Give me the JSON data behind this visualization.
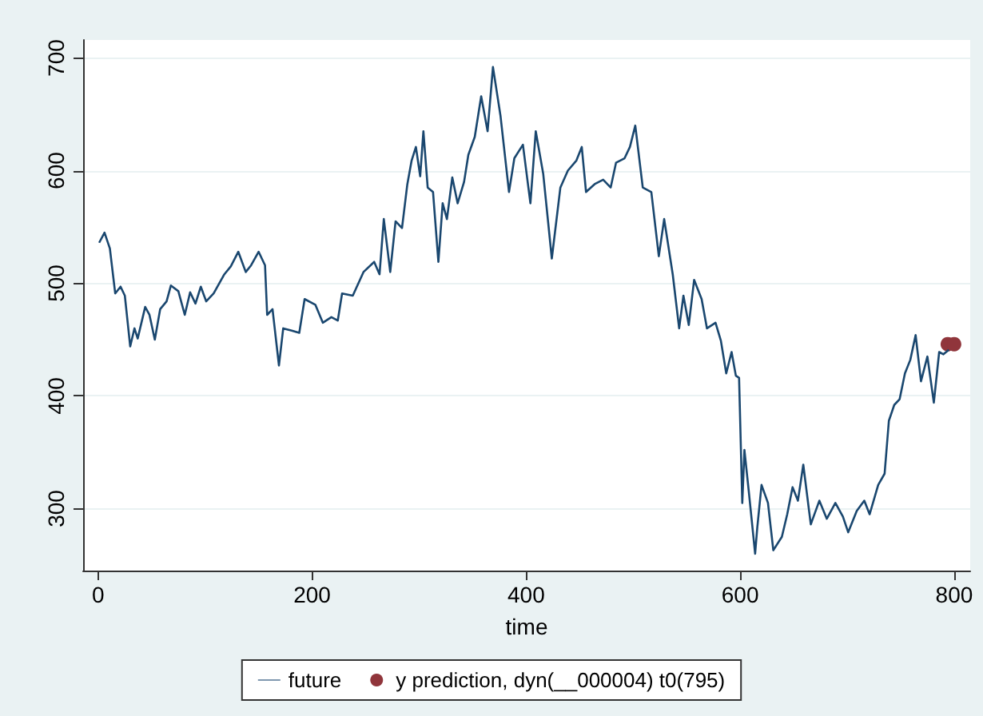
{
  "chart_data": {
    "type": "line",
    "xlabel": "time",
    "xlim": [
      -14,
      815
    ],
    "xticks": [
      0,
      200,
      400,
      600,
      800
    ],
    "ylim": [
      245,
      716
    ],
    "yticks": [
      300,
      400,
      500,
      600,
      700
    ],
    "grid": "y",
    "legend": "bottom",
    "marker": "none",
    "series": [
      {
        "name": "future",
        "color": "#1a476f",
        "x": [
          1,
          6,
          11,
          16,
          21,
          25,
          30,
          34,
          37,
          44,
          48,
          53,
          58,
          64,
          68,
          75,
          81,
          86,
          91,
          96,
          101,
          108,
          118,
          124,
          131,
          138,
          143,
          150,
          156,
          158,
          163,
          169,
          173,
          181,
          188,
          193,
          203,
          210,
          218,
          224,
          228,
          238,
          248,
          258,
          263,
          267,
          273,
          278,
          284,
          289,
          293,
          297,
          301,
          304,
          308,
          313,
          318,
          322,
          326,
          331,
          336,
          342,
          346,
          352,
          358,
          364,
          369,
          376,
          384,
          389,
          397,
          404,
          409,
          416,
          424,
          432,
          439,
          447,
          452,
          456,
          464,
          472,
          479,
          484,
          492,
          497,
          502,
          509,
          517,
          524,
          529,
          537,
          543,
          547,
          552,
          557,
          564,
          569,
          577,
          582,
          587,
          592,
          596,
          599,
          602,
          604,
          608,
          614,
          616,
          620,
          626,
          631,
          639,
          644,
          649,
          654,
          659,
          666,
          674,
          681,
          689,
          696,
          701,
          709,
          716,
          721,
          729,
          735,
          739,
          744,
          749,
          754,
          759,
          764,
          769,
          775,
          781,
          786,
          790,
          795
        ],
        "values": [
          536,
          545,
          531,
          491,
          497,
          489,
          444,
          460,
          451,
          479,
          472,
          450,
          477,
          484,
          498,
          493,
          472,
          492,
          482,
          497,
          484,
          491,
          508,
          515,
          528,
          510,
          516,
          528,
          516,
          472,
          477,
          427,
          460,
          458,
          456,
          486,
          481,
          465,
          470,
          467,
          491,
          489,
          510,
          519,
          508,
          557,
          510,
          555,
          549,
          588,
          609,
          621,
          595,
          635,
          585,
          581,
          519,
          571,
          557,
          594,
          571,
          590,
          614,
          630,
          666,
          635,
          692,
          649,
          581,
          611,
          623,
          571,
          635,
          597,
          522,
          585,
          600,
          609,
          621,
          581,
          588,
          592,
          585,
          607,
          611,
          621,
          640,
          585,
          581,
          524,
          557,
          508,
          460,
          489,
          463,
          503,
          486,
          460,
          465,
          449,
          420,
          439,
          418,
          416,
          305,
          352,
          316,
          260,
          283,
          321,
          305,
          263,
          275,
          295,
          319,
          307,
          339,
          286,
          307,
          291,
          305,
          293,
          279,
          298,
          307,
          295,
          321,
          331,
          378,
          392,
          397,
          420,
          432,
          454,
          413,
          435,
          394,
          439,
          437,
          441
        ]
      },
      {
        "name": "y prediction, dyn(__000004) t0(795)",
        "type": "scatter",
        "marker": "circle",
        "color": "#90353b",
        "x": [
          794,
          800
        ],
        "values": [
          446,
          446
        ]
      }
    ]
  }
}
